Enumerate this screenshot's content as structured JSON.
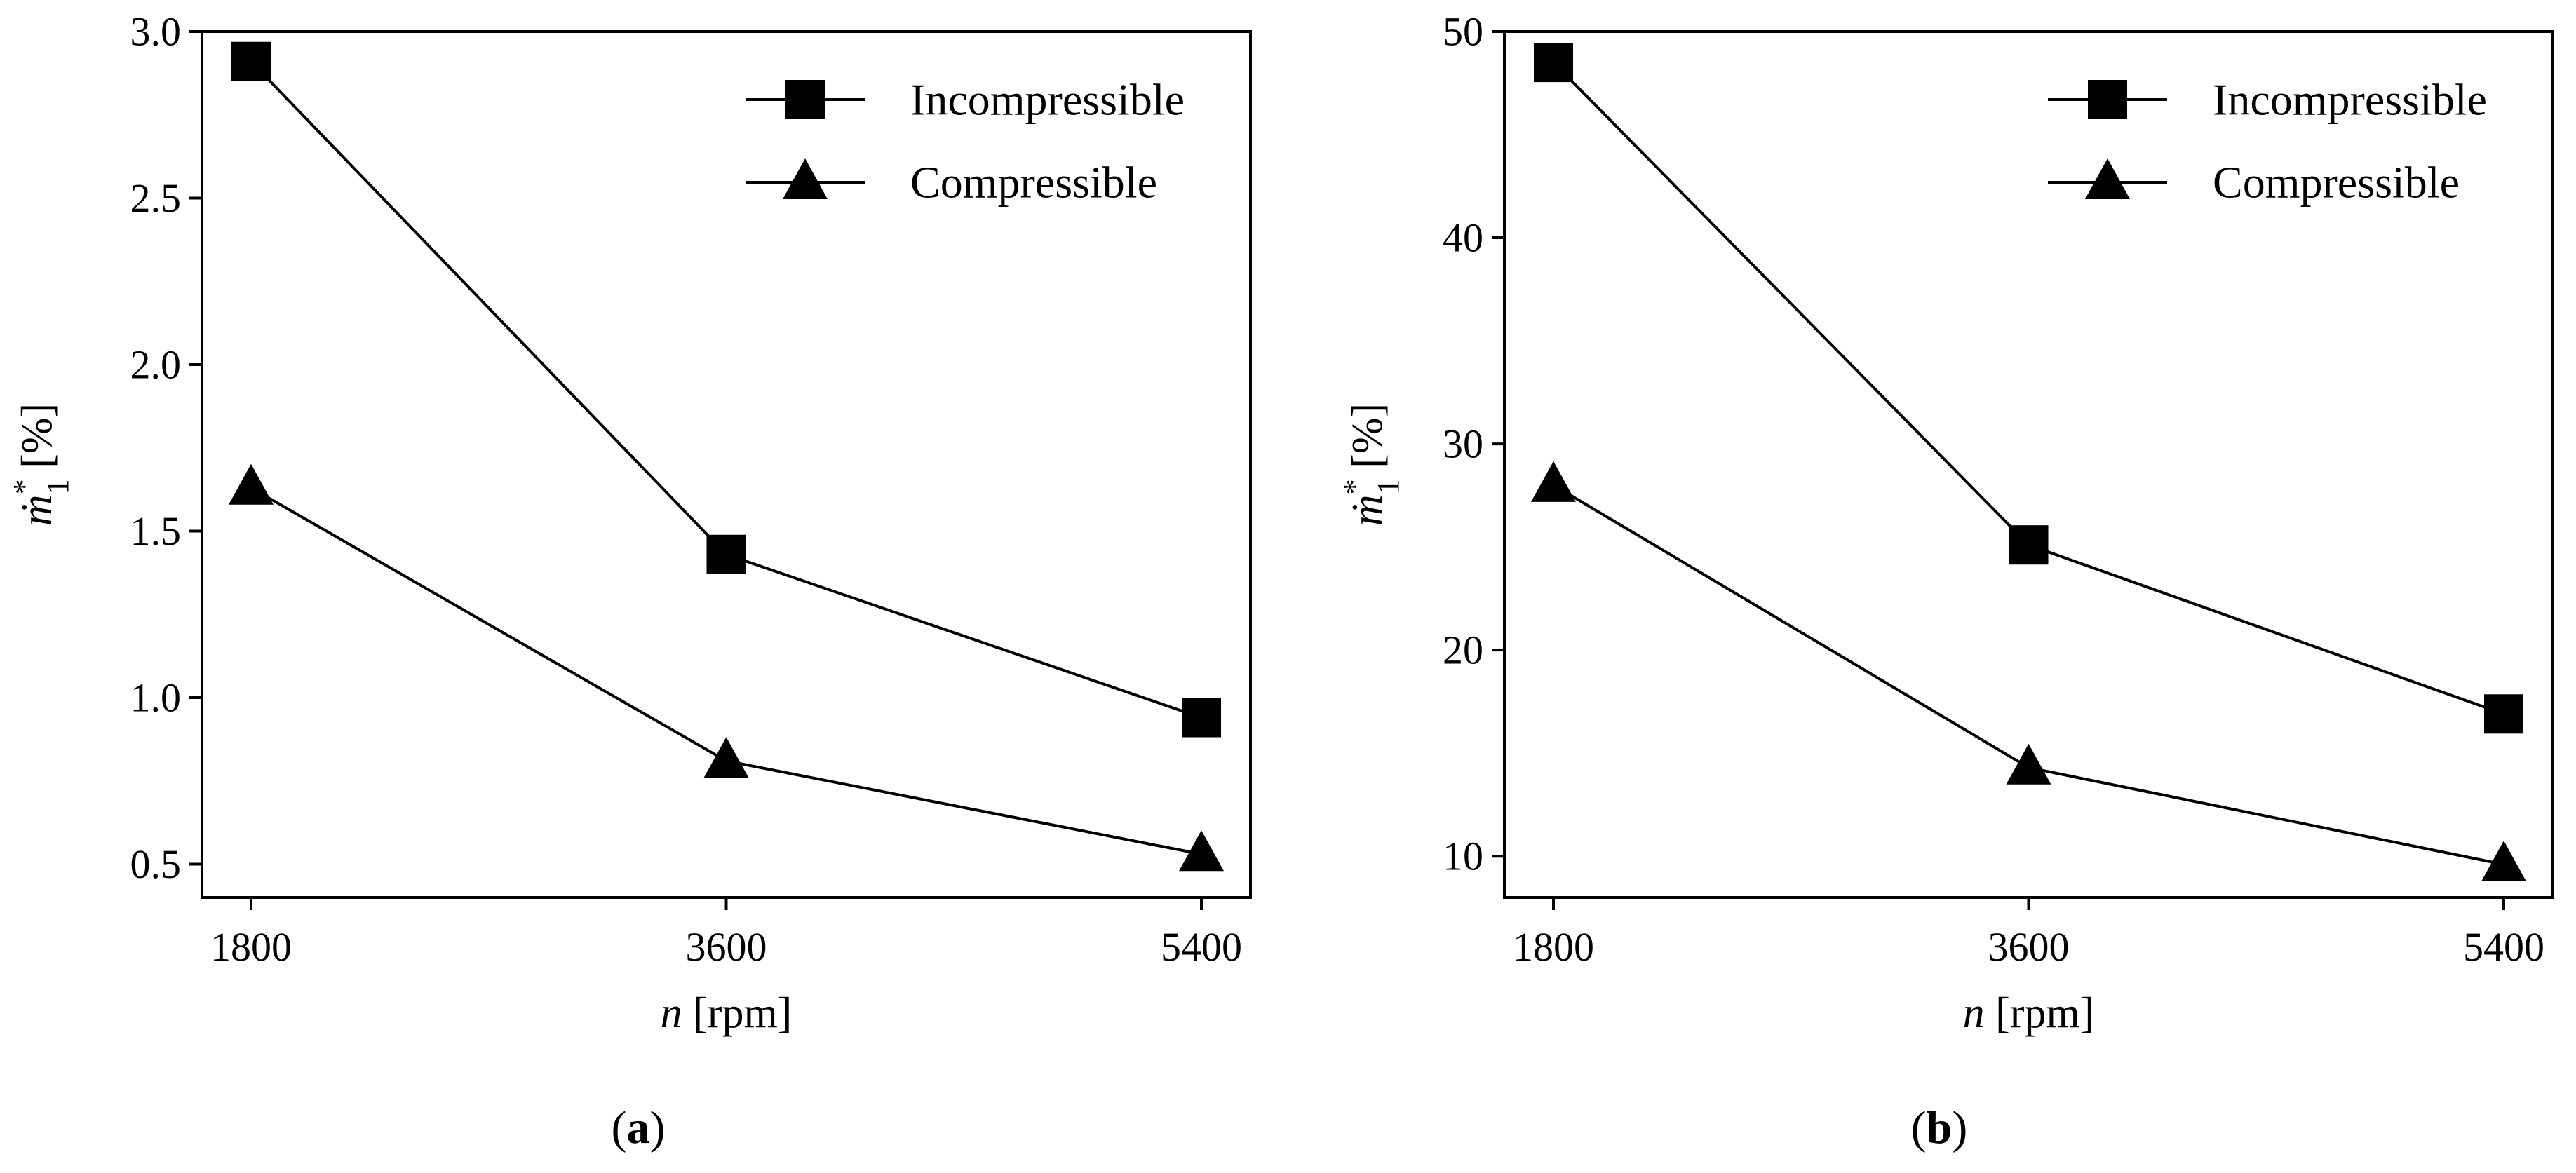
{
  "chart_data": [
    {
      "type": "line",
      "panel_label": "(a)",
      "x": [
        1800,
        3600,
        5400
      ],
      "x_ticks": [
        "1800",
        "3600",
        "5400"
      ],
      "xlabel_var": "n",
      "xlabel_unit": "[rpm]",
      "ylabel_var": "ṁ",
      "ylabel_sup": "*",
      "ylabel_sub": "1",
      "ylabel_unit": "[%]",
      "ylim": [
        0.4,
        3.0
      ],
      "y_ticks": [
        "0.5",
        "1.0",
        "1.5",
        "2.0",
        "2.5",
        "3.0"
      ],
      "y_tick_values": [
        0.5,
        1.0,
        1.5,
        2.0,
        2.5,
        3.0
      ],
      "legend_position": "top-right",
      "series": [
        {
          "name": "Incompressible",
          "marker": "square",
          "values": [
            2.91,
            1.43,
            0.94
          ]
        },
        {
          "name": "Compressible",
          "marker": "triangle",
          "values": [
            1.63,
            0.81,
            0.53
          ]
        }
      ]
    },
    {
      "type": "line",
      "panel_label": "(b)",
      "x": [
        1800,
        3600,
        5400
      ],
      "x_ticks": [
        "1800",
        "3600",
        "5400"
      ],
      "xlabel_var": "n",
      "xlabel_unit": "[rpm]",
      "ylabel_var": "ṁ",
      "ylabel_sup": "*",
      "ylabel_sub": "1",
      "ylabel_unit": "[%]",
      "ylim": [
        8,
        50
      ],
      "y_ticks": [
        "10",
        "20",
        "30",
        "40",
        "50"
      ],
      "y_tick_values": [
        10,
        20,
        30,
        40,
        50
      ],
      "legend_position": "top-right",
      "series": [
        {
          "name": "Incompressible",
          "marker": "square",
          "values": [
            48.5,
            25.1,
            16.9
          ]
        },
        {
          "name": "Compressible",
          "marker": "triangle",
          "values": [
            28.0,
            14.3,
            9.6
          ]
        }
      ]
    }
  ]
}
